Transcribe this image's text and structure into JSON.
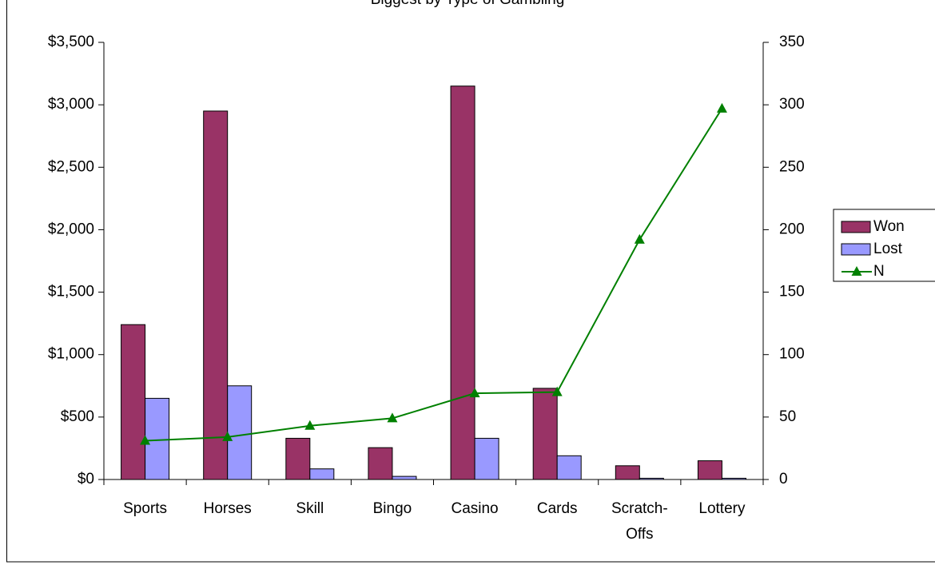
{
  "chart_data": {
    "type": "bar-line",
    "title": "Biggest by Type of Gambling",
    "categories": [
      "Sports",
      "Horses",
      "Skill",
      "Bingo",
      "Casino",
      "Cards",
      "Scratch-Offs",
      "Lottery"
    ],
    "series": [
      {
        "name": "Won",
        "color": "#993366",
        "type": "bar",
        "values": [
          1240,
          2950,
          330,
          255,
          3150,
          730,
          110,
          150
        ]
      },
      {
        "name": "Lost",
        "color": "#9999ff",
        "type": "bar",
        "values": [
          650,
          750,
          85,
          25,
          330,
          190,
          10,
          10
        ]
      },
      {
        "name": "N",
        "color": "#008000",
        "type": "line",
        "axis": "y2",
        "values": [
          31,
          34,
          43,
          49,
          69,
          70,
          192,
          297
        ]
      }
    ],
    "ylim": [
      0,
      3500
    ],
    "yticks": [
      {
        "value": 0,
        "label": "$0"
      },
      {
        "value": 500,
        "label": "$500"
      },
      {
        "value": 1000,
        "label": "$1,000"
      },
      {
        "value": 1500,
        "label": "$1,500"
      },
      {
        "value": 2000,
        "label": "$2,000"
      },
      {
        "value": 2500,
        "label": "$2,500"
      },
      {
        "value": 3000,
        "label": "$3,000"
      },
      {
        "value": 3500,
        "label": "$3,500"
      }
    ],
    "y2lim": [
      0,
      350
    ],
    "y2ticks": [
      0,
      50,
      100,
      150,
      200,
      250,
      300,
      350
    ],
    "grid": false,
    "legend": "right"
  }
}
